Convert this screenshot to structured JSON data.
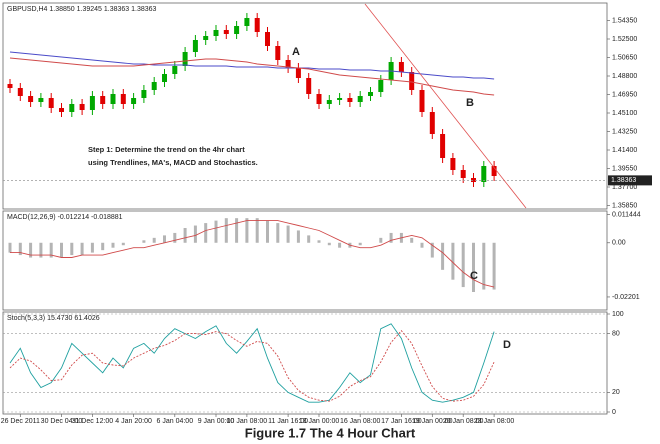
{
  "chart_data": [
    {
      "type": "candlestick",
      "title": "GBPUSD,H4 1.38850 1.39245 1.38363 1.38363",
      "categories": [
        null,
        "26 Dec 2011",
        null,
        null,
        null,
        "30 Dec 04:00",
        null,
        null,
        "31 Dec 12:00",
        null,
        null,
        null,
        "4 Jan 20:00",
        null,
        null,
        null,
        "6 Jan 04:00",
        null,
        null,
        null,
        "9 Jan 00:00",
        null,
        null,
        "10 Jan 08:00",
        null,
        null,
        null,
        "11 Jan 16:00",
        null,
        null,
        "13 Jan 00:00",
        null,
        null,
        null,
        "16 Jan 08:00",
        null,
        null,
        null,
        "17 Jan 16:00",
        null,
        null,
        "19 Jan 00:00",
        null,
        null,
        "20 Jan 08:00",
        null,
        null,
        "23 Jan 08:00"
      ],
      "open": [
        1.48,
        1.476,
        1.468,
        1.462,
        1.466,
        1.456,
        1.452,
        1.46,
        1.454,
        1.468,
        1.46,
        1.47,
        1.46,
        1.466,
        1.474,
        1.482,
        1.49,
        1.498,
        1.512,
        1.524,
        1.528,
        1.534,
        1.53,
        1.538,
        1.546,
        1.532,
        1.518,
        1.504,
        1.496,
        1.486,
        1.47,
        1.46,
        1.464,
        1.466,
        1.462,
        1.468,
        1.472,
        1.484,
        1.502,
        1.492,
        1.474,
        1.452,
        1.43,
        1.406,
        1.394,
        1.386,
        1.382,
        1.398
      ],
      "high": [
        1.485,
        1.481,
        1.473,
        1.471,
        1.471,
        1.461,
        1.465,
        1.465,
        1.473,
        1.473,
        1.475,
        1.475,
        1.471,
        1.479,
        1.487,
        1.495,
        1.503,
        1.517,
        1.529,
        1.533,
        1.539,
        1.539,
        1.543,
        1.551,
        1.551,
        1.537,
        1.523,
        1.509,
        1.501,
        1.491,
        1.475,
        1.469,
        1.471,
        1.471,
        1.473,
        1.477,
        1.489,
        1.507,
        1.507,
        1.497,
        1.479,
        1.457,
        1.435,
        1.411,
        1.399,
        1.391,
        1.403,
        1.403
      ],
      "low": [
        1.471,
        1.463,
        1.457,
        1.457,
        1.451,
        1.447,
        1.447,
        1.449,
        1.449,
        1.455,
        1.455,
        1.455,
        1.455,
        1.461,
        1.469,
        1.477,
        1.485,
        1.493,
        1.507,
        1.519,
        1.523,
        1.525,
        1.525,
        1.533,
        1.527,
        1.513,
        1.499,
        1.491,
        1.481,
        1.465,
        1.455,
        1.455,
        1.459,
        1.457,
        1.457,
        1.463,
        1.467,
        1.479,
        1.487,
        1.469,
        1.447,
        1.425,
        1.401,
        1.389,
        1.381,
        1.377,
        1.377,
        1.383
      ],
      "close": [
        1.476,
        1.468,
        1.462,
        1.466,
        1.456,
        1.452,
        1.46,
        1.454,
        1.468,
        1.46,
        1.47,
        1.46,
        1.466,
        1.474,
        1.482,
        1.49,
        1.498,
        1.512,
        1.524,
        1.528,
        1.534,
        1.53,
        1.538,
        1.546,
        1.532,
        1.518,
        1.504,
        1.496,
        1.486,
        1.47,
        1.46,
        1.464,
        1.466,
        1.462,
        1.468,
        1.472,
        1.484,
        1.502,
        1.492,
        1.474,
        1.452,
        1.43,
        1.406,
        1.394,
        1.386,
        1.382,
        1.398,
        1.388
      ],
      "up_color": "#00a800",
      "down_color": "#e00000",
      "series": [
        {
          "color": "#4a4ac8",
          "values": [
            1.512,
            1.511,
            1.51,
            1.509,
            1.508,
            1.507,
            1.506,
            1.505,
            1.504,
            1.503,
            1.502,
            1.501,
            1.5,
            1.5,
            1.499,
            1.499,
            1.499,
            1.499,
            1.498,
            1.498,
            1.498,
            1.498,
            1.497,
            1.497,
            1.497,
            1.497,
            1.496,
            1.496,
            1.496,
            1.496,
            1.495,
            1.495,
            1.495,
            1.494,
            1.494,
            1.494,
            1.493,
            1.493,
            1.492,
            1.491,
            1.49,
            1.489,
            1.488,
            1.487,
            1.487,
            1.486,
            1.486,
            1.485
          ]
        },
        {
          "color": "#d04a4a",
          "values": [
            1.506,
            1.505,
            1.504,
            1.503,
            1.502,
            1.501,
            1.5,
            1.499,
            1.498,
            1.498,
            1.498,
            1.498,
            1.498,
            1.499,
            1.5,
            1.501,
            1.502,
            1.503,
            1.504,
            1.505,
            1.505,
            1.504,
            1.503,
            1.502,
            1.5,
            1.499,
            1.498,
            1.497,
            1.496,
            1.495,
            1.493,
            1.491,
            1.489,
            1.488,
            1.487,
            1.486,
            1.485,
            1.484,
            1.483,
            1.482,
            1.48,
            1.478,
            1.476,
            1.474,
            1.473,
            1.472,
            1.47,
            1.469
          ]
        }
      ],
      "price_line": 1.38363,
      "ylim": [
        1.356,
        1.559
      ],
      "yticks": [
        {
          "value": 1.3585,
          "label": "1.35850"
        },
        {
          "value": 1.377,
          "label": "1.37700"
        },
        {
          "value": 1.3955,
          "label": "1.39550"
        },
        {
          "value": 1.414,
          "label": "1.41400"
        },
        {
          "value": 1.4325,
          "label": "1.43250"
        },
        {
          "value": 1.451,
          "label": "1.45100"
        },
        {
          "value": 1.4695,
          "label": "1.46950"
        },
        {
          "value": 1.488,
          "label": "1.48800"
        },
        {
          "value": 1.5065,
          "label": "1.50650"
        },
        {
          "value": 1.525,
          "label": "1.52500"
        },
        {
          "value": 1.5435,
          "label": "1.54350"
        }
      ],
      "grid": false,
      "annotations": [
        "A",
        "B",
        "Step 1: Determine the trend on the 4hr chart",
        "using Trendlines, MA's, MACD and Stochastics."
      ]
    },
    {
      "type": "macd",
      "title": "MACD(12,26,9) -0.012214 -0.018881",
      "values": [
        -0.004,
        -0.005,
        -0.006,
        -0.006,
        -0.006,
        -0.006,
        -0.005,
        -0.005,
        -0.004,
        -0.003,
        -0.002,
        -0.001,
        0.0,
        0.001,
        0.002,
        0.003,
        0.004,
        0.006,
        0.007,
        0.008,
        0.009,
        0.01,
        0.01,
        0.01,
        0.01,
        0.009,
        0.008,
        0.007,
        0.005,
        0.003,
        0.001,
        -0.001,
        -0.002,
        -0.002,
        -0.001,
        0.0,
        0.002,
        0.004,
        0.004,
        0.002,
        -0.002,
        -0.006,
        -0.011,
        -0.015,
        -0.018,
        -0.02,
        -0.019,
        -0.019
      ],
      "color": "#b4b4b4",
      "series": [
        {
          "color": "#d04a4a",
          "values": [
            -0.004,
            -0.004,
            -0.005,
            -0.005,
            -0.005,
            -0.006,
            -0.006,
            -0.005,
            -0.005,
            -0.005,
            -0.004,
            -0.003,
            -0.002,
            -0.002,
            -0.001,
            0.0,
            0.001,
            0.002,
            0.003,
            0.005,
            0.006,
            0.007,
            0.008,
            0.009,
            0.009,
            0.009,
            0.009,
            0.008,
            0.007,
            0.006,
            0.005,
            0.003,
            0.001,
            -0.001,
            -0.002,
            -0.002,
            -0.001,
            0.001,
            0.002,
            0.003,
            0.002,
            -0.001,
            -0.004,
            -0.008,
            -0.012,
            -0.015,
            -0.017,
            -0.018
          ]
        }
      ],
      "ylim": [
        -0.0265,
        0.0125
      ],
      "yticks": [
        -0.02201,
        {
          "value": 0,
          "label": "0.00"
        },
        0.011444
      ],
      "grid": false,
      "annotations": [
        "C"
      ]
    },
    {
      "type": "stochastic",
      "title": "Stoch(5,3,3) 15.4730 61.4026",
      "series": [
        {
          "color": "#1fa0a0",
          "values": [
            50,
            65,
            40,
            25,
            30,
            45,
            70,
            60,
            50,
            40,
            55,
            45,
            65,
            70,
            60,
            75,
            85,
            80,
            75,
            82,
            88,
            70,
            60,
            72,
            85,
            55,
            30,
            20,
            15,
            10,
            10,
            12,
            25,
            40,
            30,
            38,
            85,
            90,
            75,
            45,
            20,
            12,
            10,
            12,
            15,
            20,
            50,
            82
          ]
        },
        {
          "color": "#d04a4a",
          "values": [
            45,
            55,
            52,
            43,
            32,
            33,
            48,
            58,
            60,
            50,
            48,
            47,
            55,
            60,
            65,
            68,
            73,
            80,
            80,
            79,
            82,
            80,
            73,
            67,
            72,
            70,
            57,
            35,
            22,
            15,
            12,
            11,
            16,
            26,
            32,
            36,
            51,
            71,
            83,
            70,
            47,
            26,
            14,
            11,
            12,
            16,
            28,
            51
          ]
        }
      ],
      "ylim": [
        0,
        100
      ],
      "yticks": [
        0,
        20,
        80,
        100
      ],
      "grid": true,
      "annotations": [
        "D"
      ]
    }
  ],
  "caption": "Figure 1.7 The 4 Hour Chart"
}
